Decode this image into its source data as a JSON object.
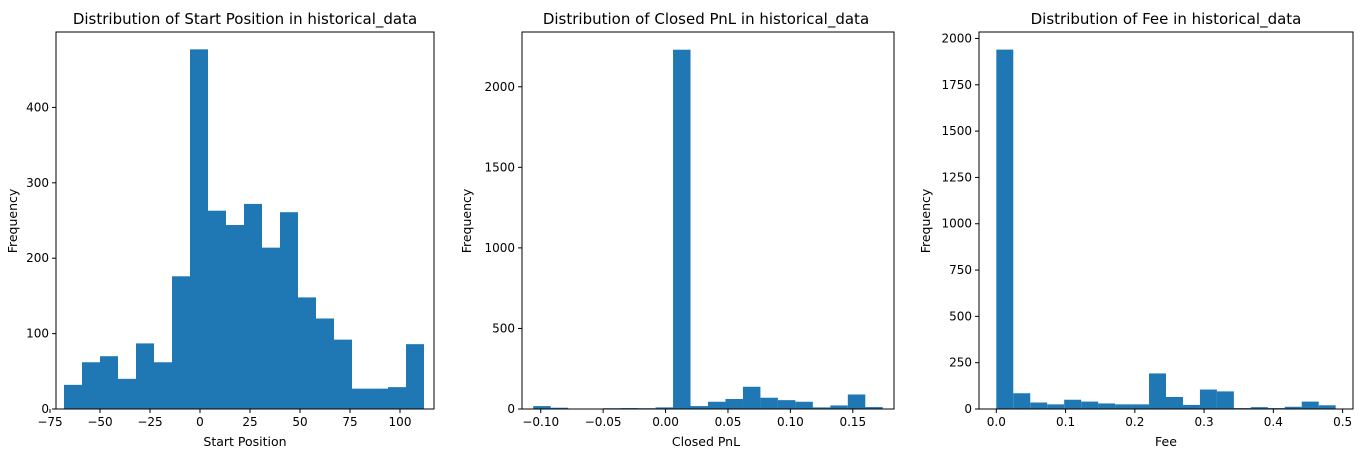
{
  "chart_data": [
    {
      "type": "bar",
      "title": "Distribution of Start Position in historical_data",
      "xlabel": "Start Position",
      "ylabel": "Frequency",
      "bar_color": "#1f77b4",
      "bin_edges": [
        -68,
        -59,
        -50,
        -41,
        -32,
        -23,
        -14,
        -5,
        4,
        13,
        22,
        31,
        40,
        49,
        58,
        67,
        76,
        85,
        94,
        103,
        112
      ],
      "values": [
        32,
        62,
        70,
        40,
        87,
        62,
        176,
        477,
        263,
        244,
        272,
        214,
        261,
        148,
        120,
        92,
        27,
        27,
        29,
        86
      ],
      "xlim": [
        -72,
        117
      ],
      "ylim": [
        0,
        500
      ],
      "xticks": [
        -75,
        -50,
        -25,
        0,
        25,
        50,
        75,
        100
      ],
      "xtick_labels": [
        "−75",
        "−50",
        "−25",
        "0",
        "25",
        "50",
        "75",
        "100"
      ],
      "yticks": [
        0,
        100,
        200,
        300,
        400
      ],
      "ytick_labels": [
        "0",
        "100",
        "200",
        "300",
        "400"
      ]
    },
    {
      "type": "bar",
      "title": "Distribution of Closed PnL in historical_data",
      "xlabel": "Closed PnL",
      "ylabel": "Frequency",
      "bar_color": "#1f77b4",
      "bin_edges": [
        -0.106,
        -0.092,
        -0.078,
        -0.064,
        -0.05,
        -0.036,
        -0.022,
        -0.008,
        0.006,
        0.02,
        0.034,
        0.048,
        0.062,
        0.076,
        0.09,
        0.104,
        0.118,
        0.132,
        0.146,
        0.16,
        0.174
      ],
      "values": [
        18,
        8,
        2,
        1,
        5,
        6,
        5,
        10,
        2230,
        18,
        45,
        62,
        138,
        70,
        55,
        45,
        10,
        22,
        90,
        12
      ],
      "xlim": [
        -0.115,
        0.183
      ],
      "ylim": [
        0,
        2340
      ],
      "xticks": [
        -0.1,
        -0.05,
        0.0,
        0.05,
        0.1,
        0.15
      ],
      "xtick_labels": [
        "−0.10",
        "−0.05",
        "0.00",
        "0.05",
        "0.10",
        "0.15"
      ],
      "yticks": [
        0,
        500,
        1000,
        1500,
        2000
      ],
      "ytick_labels": [
        "0",
        "500",
        "1000",
        "1500",
        "2000"
      ]
    },
    {
      "type": "bar",
      "title": "Distribution of Fee in historical_data",
      "xlabel": "Fee",
      "ylabel": "Frequency",
      "bar_color": "#1f77b4",
      "bin_edges": [
        0.0,
        0.0245,
        0.049,
        0.0735,
        0.098,
        0.1225,
        0.147,
        0.1715,
        0.196,
        0.2205,
        0.245,
        0.2695,
        0.294,
        0.3185,
        0.343,
        0.3675,
        0.392,
        0.4165,
        0.441,
        0.4655,
        0.49
      ],
      "values": [
        1940,
        85,
        35,
        25,
        50,
        40,
        30,
        25,
        25,
        192,
        65,
        22,
        105,
        95,
        5,
        10,
        5,
        12,
        40,
        20
      ],
      "xlim": [
        -0.025,
        0.515
      ],
      "ylim": [
        0,
        2035
      ],
      "xticks": [
        0.0,
        0.1,
        0.2,
        0.3,
        0.4,
        0.5
      ],
      "xtick_labels": [
        "0.0",
        "0.1",
        "0.2",
        "0.3",
        "0.4",
        "0.5"
      ],
      "yticks": [
        0,
        250,
        500,
        750,
        1000,
        1250,
        1500,
        1750,
        2000
      ],
      "ytick_labels": [
        "0",
        "250",
        "500",
        "750",
        "1000",
        "1250",
        "1500",
        "1750",
        "2000"
      ]
    }
  ]
}
